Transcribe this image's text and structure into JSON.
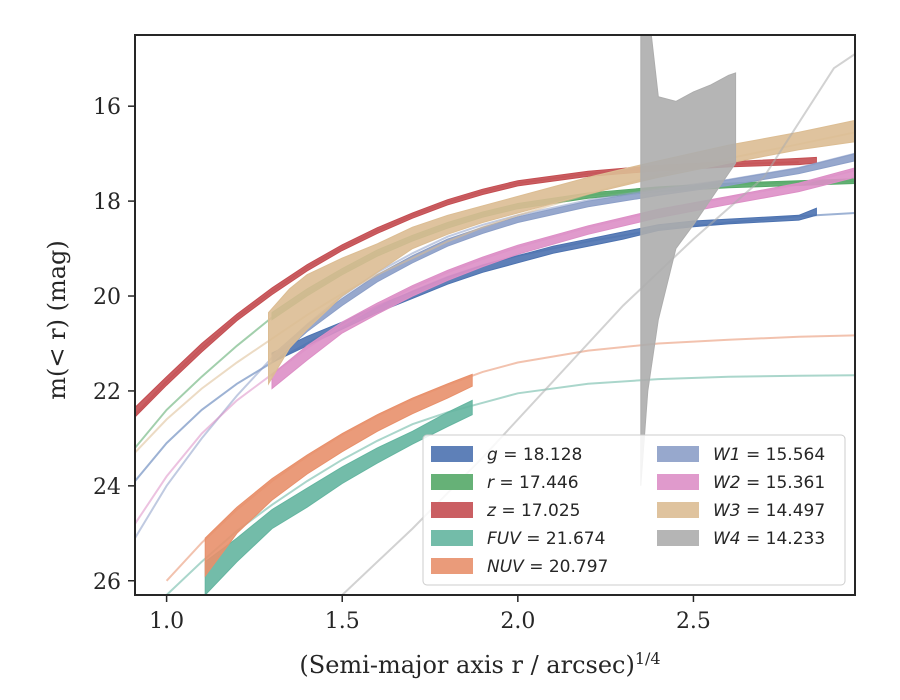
{
  "chart_data": {
    "type": "line",
    "title": "",
    "xlabel": "(Semi-major axis r / arcsec)",
    "xlabel_sup": "1/4",
    "ylabel": "m(< r) (mag)",
    "xlim": [
      0.91,
      2.96
    ],
    "ylim": [
      26.3,
      14.5
    ],
    "y_inverted": true,
    "grid": false,
    "legend_placement": "lower-right",
    "x_ticks": [
      "1.0",
      "1.5",
      "2.0",
      "2.5"
    ],
    "y_ticks": [
      "16",
      "18",
      "20",
      "22",
      "24",
      "26"
    ],
    "series": [
      {
        "name": "g = 18.128",
        "legend_main": "g",
        "legend_value": "18.128",
        "color": "#4c72b0",
        "model": [
          [
            0.91,
            23.9
          ],
          [
            1.0,
            23.1
          ],
          [
            1.1,
            22.4
          ],
          [
            1.2,
            21.85
          ],
          [
            1.3,
            21.4
          ],
          [
            1.4,
            21.0
          ],
          [
            1.5,
            20.6
          ],
          [
            1.6,
            20.25
          ],
          [
            1.7,
            19.9
          ],
          [
            1.8,
            19.6
          ],
          [
            1.9,
            19.35
          ],
          [
            2.0,
            19.15
          ],
          [
            2.2,
            18.85
          ],
          [
            2.4,
            18.6
          ],
          [
            2.6,
            18.45
          ],
          [
            2.8,
            18.32
          ],
          [
            2.96,
            18.25
          ]
        ],
        "band": [
          [
            1.3,
            21.2,
            21.4
          ],
          [
            1.4,
            20.85,
            21.05
          ],
          [
            1.5,
            20.55,
            20.7
          ],
          [
            1.6,
            20.2,
            20.35
          ],
          [
            1.7,
            19.9,
            20.05
          ],
          [
            1.8,
            19.6,
            19.75
          ],
          [
            1.9,
            19.35,
            19.5
          ],
          [
            2.0,
            19.15,
            19.3
          ],
          [
            2.1,
            18.95,
            19.1
          ],
          [
            2.2,
            18.8,
            18.95
          ],
          [
            2.3,
            18.65,
            18.8
          ],
          [
            2.4,
            18.5,
            18.62
          ],
          [
            2.5,
            18.42,
            18.54
          ],
          [
            2.6,
            18.38,
            18.48
          ],
          [
            2.7,
            18.34,
            18.44
          ],
          [
            2.8,
            18.3,
            18.4
          ],
          [
            2.85,
            18.15,
            18.3
          ]
        ]
      },
      {
        "name": "r = 17.446",
        "legend_main": "r",
        "legend_value": "17.446",
        "color": "#55a868",
        "model": [
          [
            0.91,
            23.2
          ],
          [
            1.0,
            22.4
          ],
          [
            1.1,
            21.7
          ],
          [
            1.2,
            21.05
          ],
          [
            1.3,
            20.45
          ],
          [
            1.4,
            19.95
          ],
          [
            1.5,
            19.5
          ],
          [
            1.6,
            19.1
          ],
          [
            1.7,
            18.78
          ],
          [
            1.8,
            18.5
          ],
          [
            1.9,
            18.28
          ],
          [
            2.0,
            18.1
          ],
          [
            2.2,
            17.88
          ],
          [
            2.4,
            17.73
          ],
          [
            2.6,
            17.65
          ],
          [
            2.8,
            17.6
          ],
          [
            2.96,
            17.58
          ]
        ],
        "band": [
          [
            1.3,
            20.35,
            20.5
          ],
          [
            1.4,
            19.85,
            20.0
          ],
          [
            1.5,
            19.42,
            19.55
          ],
          [
            1.6,
            19.03,
            19.16
          ],
          [
            1.7,
            18.72,
            18.84
          ],
          [
            1.8,
            18.45,
            18.57
          ],
          [
            1.9,
            18.23,
            18.34
          ],
          [
            2.0,
            18.05,
            18.16
          ],
          [
            2.2,
            17.83,
            17.94
          ],
          [
            2.4,
            17.7,
            17.8
          ],
          [
            2.6,
            17.62,
            17.72
          ],
          [
            2.8,
            17.57,
            17.67
          ],
          [
            2.96,
            17.53,
            17.63
          ]
        ]
      },
      {
        "name": "z = 17.025",
        "legend_main": "z",
        "legend_value": "17.025",
        "color": "#c44e52",
        "model": [
          [
            0.91,
            22.5
          ],
          [
            1.0,
            21.8
          ],
          [
            1.1,
            21.1
          ],
          [
            1.2,
            20.45
          ],
          [
            1.3,
            19.9
          ],
          [
            1.4,
            19.4
          ],
          [
            1.5,
            18.98
          ],
          [
            1.6,
            18.62
          ],
          [
            1.7,
            18.3
          ],
          [
            1.8,
            18.02
          ],
          [
            1.9,
            17.8
          ],
          [
            2.0,
            17.62
          ],
          [
            2.2,
            17.42
          ],
          [
            2.4,
            17.3
          ],
          [
            2.6,
            17.22
          ],
          [
            2.8,
            17.18
          ]
        ],
        "band": [
          [
            0.91,
            22.35,
            22.55
          ],
          [
            1.0,
            21.7,
            21.88
          ],
          [
            1.1,
            21.0,
            21.18
          ],
          [
            1.2,
            20.38,
            20.52
          ],
          [
            1.3,
            19.83,
            19.97
          ],
          [
            1.4,
            19.34,
            19.47
          ],
          [
            1.5,
            18.92,
            19.04
          ],
          [
            1.6,
            18.56,
            18.68
          ],
          [
            1.7,
            18.25,
            18.36
          ],
          [
            1.8,
            17.97,
            18.08
          ],
          [
            1.9,
            17.75,
            17.86
          ],
          [
            2.0,
            17.57,
            17.68
          ],
          [
            2.2,
            17.37,
            17.48
          ],
          [
            2.4,
            17.25,
            17.36
          ],
          [
            2.6,
            17.17,
            17.28
          ],
          [
            2.8,
            17.1,
            17.23
          ],
          [
            2.85,
            17.08,
            17.2
          ]
        ]
      },
      {
        "name": "FUV = 21.674",
        "legend_main": "FUV",
        "legend_value": "21.674",
        "color": "#64b5a0",
        "model": [
          [
            1.0,
            26.3
          ],
          [
            1.1,
            25.6
          ],
          [
            1.2,
            24.95
          ],
          [
            1.3,
            24.4
          ],
          [
            1.4,
            23.9
          ],
          [
            1.5,
            23.45
          ],
          [
            1.6,
            23.05
          ],
          [
            1.7,
            22.7
          ],
          [
            1.8,
            22.45
          ],
          [
            1.9,
            22.25
          ],
          [
            2.0,
            22.05
          ],
          [
            2.2,
            21.85
          ],
          [
            2.4,
            21.75
          ],
          [
            2.6,
            21.7
          ],
          [
            2.8,
            21.68
          ],
          [
            2.96,
            21.67
          ]
        ],
        "band": [
          [
            1.11,
            25.6,
            26.3
          ],
          [
            1.2,
            25.1,
            25.6
          ],
          [
            1.3,
            24.5,
            24.9
          ],
          [
            1.4,
            24.05,
            24.45
          ],
          [
            1.5,
            23.6,
            23.95
          ],
          [
            1.6,
            23.2,
            23.52
          ],
          [
            1.7,
            22.85,
            23.12
          ],
          [
            1.8,
            22.45,
            22.75
          ],
          [
            1.87,
            22.2,
            22.5
          ]
        ]
      },
      {
        "name": "NUV = 20.797",
        "legend_main": "NUV",
        "legend_value": "20.797",
        "color": "#e8906b",
        "model": [
          [
            1.0,
            26.0
          ],
          [
            1.1,
            25.2
          ],
          [
            1.2,
            24.5
          ],
          [
            1.3,
            23.9
          ],
          [
            1.4,
            23.38
          ],
          [
            1.5,
            22.92
          ],
          [
            1.6,
            22.52
          ],
          [
            1.7,
            22.17
          ],
          [
            1.8,
            21.87
          ],
          [
            1.9,
            21.6
          ],
          [
            2.0,
            21.4
          ],
          [
            2.2,
            21.15
          ],
          [
            2.4,
            21.0
          ],
          [
            2.6,
            20.92
          ],
          [
            2.8,
            20.86
          ],
          [
            2.96,
            20.83
          ]
        ],
        "band": [
          [
            1.11,
            25.1,
            25.9
          ],
          [
            1.2,
            24.45,
            25.0
          ],
          [
            1.3,
            23.85,
            24.3
          ],
          [
            1.4,
            23.35,
            23.75
          ],
          [
            1.5,
            22.9,
            23.28
          ],
          [
            1.6,
            22.5,
            22.85
          ],
          [
            1.7,
            22.15,
            22.48
          ],
          [
            1.8,
            21.85,
            22.15
          ],
          [
            1.87,
            21.65,
            21.9
          ]
        ]
      },
      {
        "name": "W1 = 15.564",
        "legend_main": "W1",
        "legend_value": "15.564",
        "color": "#8c9fc8",
        "model": [
          [
            0.91,
            25.1
          ],
          [
            1.0,
            24.0
          ],
          [
            1.1,
            23.0
          ],
          [
            1.2,
            22.1
          ],
          [
            1.3,
            21.3
          ],
          [
            1.4,
            20.6
          ],
          [
            1.5,
            20.0
          ],
          [
            1.6,
            19.5
          ],
          [
            1.7,
            19.1
          ],
          [
            1.8,
            18.75
          ],
          [
            1.9,
            18.5
          ],
          [
            2.0,
            18.3
          ],
          [
            2.2,
            17.98
          ],
          [
            2.4,
            17.75
          ],
          [
            2.6,
            17.55
          ],
          [
            2.8,
            17.3
          ],
          [
            2.96,
            17.0
          ]
        ],
        "band": [
          [
            1.3,
            21.25,
            21.4
          ],
          [
            1.4,
            20.6,
            20.75
          ],
          [
            1.5,
            20.05,
            20.2
          ],
          [
            1.6,
            19.55,
            19.7
          ],
          [
            1.7,
            19.15,
            19.3
          ],
          [
            1.8,
            18.8,
            18.95
          ],
          [
            1.9,
            18.55,
            18.68
          ],
          [
            2.0,
            18.33,
            18.45
          ],
          [
            2.2,
            18.0,
            18.12
          ],
          [
            2.4,
            17.77,
            17.88
          ],
          [
            2.6,
            17.55,
            17.67
          ],
          [
            2.8,
            17.3,
            17.42
          ],
          [
            2.96,
            17.0,
            17.15
          ]
        ]
      },
      {
        "name": "W2 = 15.361",
        "legend_main": "W2",
        "legend_value": "15.361",
        "color": "#dd8fc6",
        "model": [
          [
            0.91,
            24.8
          ],
          [
            1.0,
            23.8
          ],
          [
            1.1,
            22.9
          ],
          [
            1.2,
            22.2
          ],
          [
            1.3,
            21.65
          ],
          [
            1.4,
            21.1
          ],
          [
            1.5,
            20.62
          ],
          [
            1.6,
            20.2
          ],
          [
            1.7,
            19.82
          ],
          [
            1.8,
            19.5
          ],
          [
            1.9,
            19.22
          ],
          [
            2.0,
            18.97
          ],
          [
            2.2,
            18.55
          ],
          [
            2.4,
            18.2
          ],
          [
            2.6,
            17.92
          ],
          [
            2.8,
            17.65
          ],
          [
            2.96,
            17.35
          ]
        ],
        "band": [
          [
            1.3,
            21.65,
            21.95
          ],
          [
            1.4,
            21.05,
            21.35
          ],
          [
            1.5,
            20.55,
            20.78
          ],
          [
            1.6,
            20.15,
            20.38
          ],
          [
            1.7,
            19.78,
            20.0
          ],
          [
            1.8,
            19.46,
            19.67
          ],
          [
            1.9,
            19.18,
            19.38
          ],
          [
            2.0,
            18.93,
            19.12
          ],
          [
            2.2,
            18.52,
            18.7
          ],
          [
            2.4,
            18.17,
            18.35
          ],
          [
            2.6,
            17.9,
            18.07
          ],
          [
            2.8,
            17.62,
            17.8
          ],
          [
            2.96,
            17.3,
            17.5
          ]
        ]
      },
      {
        "name": "W3 = 14.497",
        "legend_main": "W3",
        "legend_value": "14.497",
        "color": "#dcbd93",
        "model": [
          [
            0.91,
            23.3
          ],
          [
            1.0,
            22.6
          ],
          [
            1.1,
            21.95
          ],
          [
            1.2,
            21.4
          ],
          [
            1.3,
            20.9
          ],
          [
            1.4,
            20.4
          ],
          [
            1.5,
            19.95
          ],
          [
            1.6,
            19.55
          ],
          [
            1.7,
            19.2
          ],
          [
            1.8,
            18.85
          ],
          [
            1.9,
            18.55
          ],
          [
            2.0,
            18.3
          ],
          [
            2.2,
            17.85
          ],
          [
            2.4,
            17.45
          ],
          [
            2.6,
            17.1
          ],
          [
            2.8,
            16.8
          ],
          [
            2.96,
            16.55
          ]
        ],
        "band": [
          [
            1.29,
            20.35,
            21.85
          ],
          [
            1.35,
            19.85,
            21.1
          ],
          [
            1.4,
            19.55,
            20.7
          ],
          [
            1.5,
            19.2,
            20.0
          ],
          [
            1.6,
            18.9,
            19.5
          ],
          [
            1.7,
            18.55,
            19.0
          ],
          [
            1.8,
            18.3,
            18.7
          ],
          [
            1.9,
            18.1,
            18.45
          ],
          [
            2.0,
            17.9,
            18.25
          ],
          [
            2.2,
            17.5,
            17.85
          ],
          [
            2.4,
            17.15,
            17.5
          ],
          [
            2.6,
            16.82,
            17.2
          ],
          [
            2.8,
            16.55,
            16.92
          ],
          [
            2.96,
            16.3,
            16.75
          ]
        ]
      },
      {
        "name": "W4 = 14.233",
        "legend_main": "W4",
        "legend_value": "14.233",
        "color": "#adadad",
        "model": [
          [
            1.5,
            26.3
          ],
          [
            1.7,
            24.9
          ],
          [
            1.9,
            23.4
          ],
          [
            2.1,
            21.8
          ],
          [
            2.3,
            20.2
          ],
          [
            2.5,
            18.8
          ],
          [
            2.7,
            17.5
          ],
          [
            2.9,
            15.2
          ],
          [
            2.96,
            14.9
          ]
        ],
        "band_poly": [
          [
            2.35,
            14.5
          ],
          [
            2.38,
            14.5
          ],
          [
            2.4,
            15.8
          ],
          [
            2.45,
            15.9
          ],
          [
            2.5,
            15.7
          ],
          [
            2.55,
            15.55
          ],
          [
            2.6,
            15.35
          ],
          [
            2.62,
            15.3
          ],
          [
            2.62,
            17.2
          ],
          [
            2.5,
            18.5
          ],
          [
            2.45,
            19.0
          ],
          [
            2.4,
            20.5
          ],
          [
            2.37,
            22.0
          ],
          [
            2.35,
            24.0
          ]
        ]
      }
    ]
  }
}
